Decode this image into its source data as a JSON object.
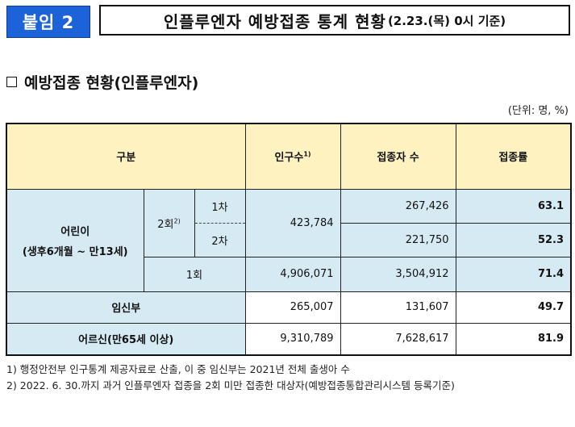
{
  "badge": "붙임 2",
  "title": {
    "main": "인플루엔자 예방접종 통계 현황",
    "date": "(2.23.(목) 0시 기준)"
  },
  "section_heading": "예방접종 현황(인플루엔자)",
  "unit": "(단위: 명, %)",
  "table": {
    "headers": {
      "category": "구분",
      "population": "인구수",
      "population_sup": "1)",
      "vaccinated": "접종자 수",
      "rate": "접종률"
    },
    "children": {
      "label_line1": "어린이",
      "label_line2": "(생후6개월 ~ 만13세)",
      "two_dose_label": "2회",
      "two_dose_sup": "2)",
      "two_dose_population": "423,784",
      "dose1": {
        "label": "1차",
        "vaccinated": "267,426",
        "rate": "63.1"
      },
      "dose2": {
        "label": "2차",
        "vaccinated": "221,750",
        "rate": "52.3"
      },
      "one_dose": {
        "label": "1회",
        "population": "4,906,071",
        "vaccinated": "3,504,912",
        "rate": "71.4"
      }
    },
    "pregnant": {
      "label": "임신부",
      "population": "265,007",
      "vaccinated": "131,607",
      "rate": "49.7"
    },
    "elderly": {
      "label": "어르신(만65세 이상)",
      "population": "9,310,789",
      "vaccinated": "7,628,617",
      "rate": "81.9"
    }
  },
  "footnotes": [
    "1) 행정안전부 인구통계 제공자료로 산출, 이 중 임신부는 2021년 전체 출생아 수",
    "2) 2022. 6. 30.까지 과거 인플루엔자 접종을 2회 미만 접종한 대상자(예방접종통합관리시스템 등록기준)"
  ]
}
